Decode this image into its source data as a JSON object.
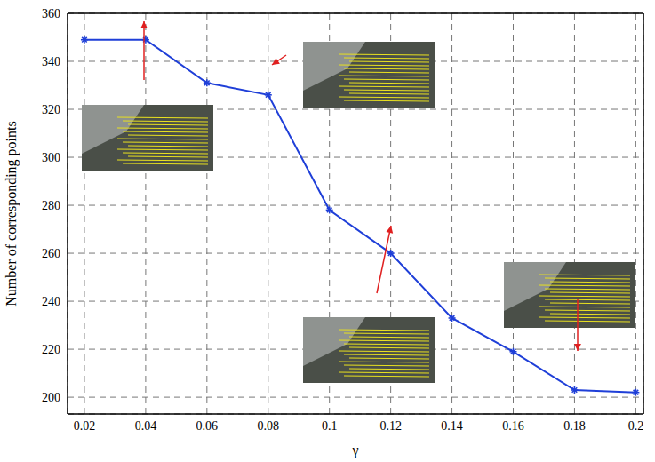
{
  "chart_data": {
    "type": "line",
    "x_label": "γ",
    "y_label": "Number of corresponding points",
    "x": [
      0.02,
      0.04,
      0.06,
      0.08,
      0.1,
      0.12,
      0.14,
      0.16,
      0.18,
      0.2
    ],
    "series": [
      {
        "name": "Number of corresponding points",
        "color": "#1f3fd8",
        "marker": "star",
        "values": [
          349,
          349,
          331,
          326,
          278,
          260,
          233,
          219,
          203,
          202
        ]
      }
    ],
    "xlim": [
      0.0145,
      0.2025
    ],
    "ylim": [
      193,
      360
    ],
    "xticks": [
      0.02,
      0.04,
      0.06,
      0.08,
      0.1,
      0.12,
      0.14,
      0.16,
      0.18,
      0.2
    ],
    "yticks": [
      200,
      220,
      240,
      260,
      280,
      300,
      320,
      340,
      360
    ],
    "grid": true
  }
}
